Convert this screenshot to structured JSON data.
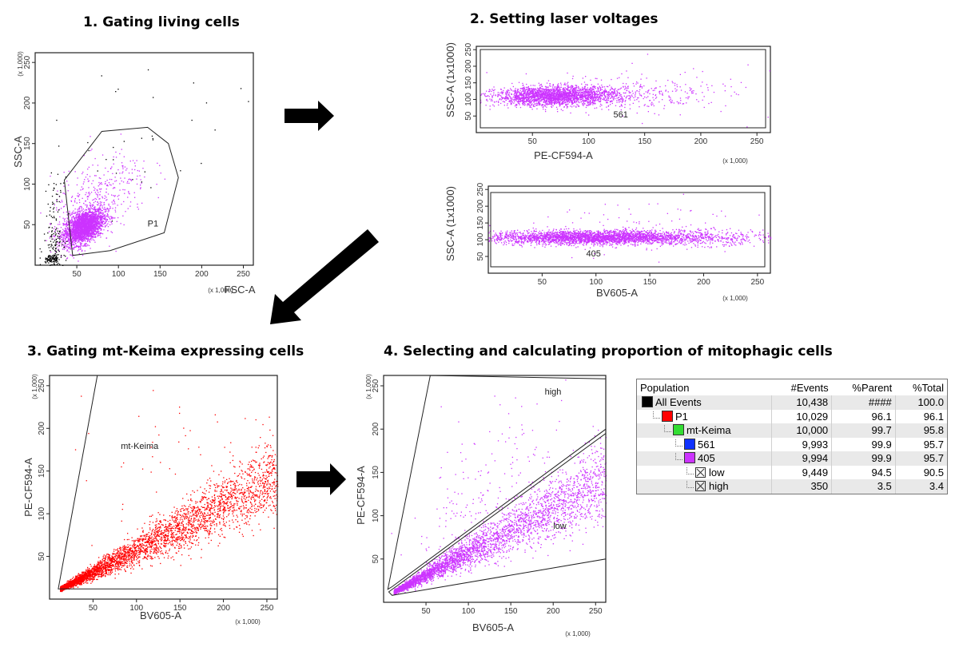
{
  "titles": {
    "s1": "1. Gating living cells",
    "s2": "2. Setting laser voltages",
    "s3": "3. Gating mt-Keima expressing cells",
    "s4": "4. Selecting and calculating proportion of mitophagic cells"
  },
  "colors": {
    "black": "#000000",
    "red": "#ff0000",
    "magenta": "#cc33ff",
    "green": "#33dd33",
    "blue": "#1133ff",
    "arrow": "#000000"
  },
  "chart_data": [
    {
      "id": "p1",
      "type": "scatter",
      "title": "1. Gating living cells",
      "xlabel": "FSC-A",
      "ylabel": "SSC-A",
      "scale_label": "(x 1,000)",
      "xlim": [
        0,
        262
      ],
      "ylim": [
        0,
        262
      ],
      "xticks": [
        50,
        100,
        150,
        200,
        250
      ],
      "yticks": [
        50,
        100,
        150,
        200,
        250
      ],
      "gates": [
        {
          "name": "P1",
          "label_at": [
            135,
            48
          ],
          "polygon": [
            [
              45,
              12
            ],
            [
              35,
              105
            ],
            [
              80,
              165
            ],
            [
              135,
              170
            ],
            [
              160,
              150
            ],
            [
              172,
              108
            ],
            [
              155,
              40
            ],
            [
              90,
              18
            ]
          ]
        }
      ],
      "clusters": [
        {
          "n": 2600,
          "color": "#cc33ff",
          "cx": 58,
          "cy": 48,
          "sx": 12,
          "sy": 11,
          "rho": 0.45
        },
        {
          "n": 350,
          "color": "#cc33ff",
          "cx": 78,
          "cy": 85,
          "sx": 30,
          "sy": 28,
          "rho": 0.5
        },
        {
          "n": 160,
          "color": "#000000",
          "cx": 22,
          "cy": 35,
          "sx": 6,
          "sy": 32,
          "rho": 0.1
        },
        {
          "n": 90,
          "color": "#000000",
          "cx": 20,
          "cy": 8,
          "sx": 6,
          "sy": 3,
          "rho": 0.1
        },
        {
          "n": 35,
          "color": "#000000",
          "cx": 120,
          "cy": 150,
          "sx": 60,
          "sy": 55,
          "rho": 0.2
        }
      ]
    },
    {
      "id": "p2a",
      "type": "scatter",
      "xlabel": "PE-CF594-A",
      "ylabel": "SSC-A (1x1000)",
      "scale_label": "(x 1,000)",
      "gate_label": "561",
      "xlim": [
        0,
        262
      ],
      "ylim": [
        0,
        260
      ],
      "xticks": [
        50,
        100,
        150,
        200,
        250
      ],
      "yticks": [
        50,
        100,
        150,
        200,
        250
      ],
      "clusters": [
        {
          "n": 2200,
          "color": "#cc33ff",
          "cx": 70,
          "cy": 112,
          "sx": 26,
          "sy": 14,
          "rho": 0.1
        },
        {
          "n": 450,
          "color": "#cc33ff",
          "cx": 115,
          "cy": 115,
          "sx": 45,
          "sy": 22,
          "rho": 0.05
        },
        {
          "n": 60,
          "color": "#cc33ff",
          "cx": 160,
          "cy": 130,
          "sx": 55,
          "sy": 45,
          "rho": 0.0
        }
      ]
    },
    {
      "id": "p2b",
      "type": "scatter",
      "xlabel": "BV605-A",
      "ylabel": "SSC-A (1x1000)",
      "scale_label": "(x 1,000)",
      "gate_label": "405",
      "xlim": [
        0,
        262
      ],
      "ylim": [
        0,
        260
      ],
      "xticks": [
        50,
        100,
        150,
        200,
        250
      ],
      "yticks": [
        50,
        100,
        150,
        200,
        250
      ],
      "clusters": [
        {
          "n": 2600,
          "color": "#cc33ff",
          "cx": 90,
          "cy": 108,
          "sx": 45,
          "sy": 10,
          "rho": 0.0
        },
        {
          "n": 700,
          "color": "#cc33ff",
          "cx": 175,
          "cy": 108,
          "sx": 45,
          "sy": 12,
          "rho": 0.0
        },
        {
          "n": 90,
          "color": "#cc33ff",
          "cx": 130,
          "cy": 140,
          "sx": 70,
          "sy": 45,
          "rho": 0.0
        }
      ]
    },
    {
      "id": "p3",
      "type": "scatter",
      "title": "3. Gating mt-Keima expressing cells",
      "xlabel": "BV605-A",
      "ylabel": "PE-CF594-A",
      "scale_label": "(x 1,000)",
      "xlim": [
        0,
        262
      ],
      "ylim": [
        0,
        262
      ],
      "xticks": [
        50,
        100,
        150,
        200,
        250
      ],
      "yticks": [
        50,
        100,
        150,
        200,
        250
      ],
      "gates": [
        {
          "name": "mt-Keima",
          "label_at": [
            82,
            176
          ],
          "polygon": [
            [
              10,
              12
            ],
            [
              55,
              262
            ],
            [
              262,
              262
            ],
            [
              262,
              12
            ]
          ]
        }
      ],
      "clusters": [
        {
          "diag": true,
          "n": 3800,
          "color": "#ff0000",
          "xmin": 12,
          "xmax": 262,
          "slope": 0.52,
          "spread": 0.17,
          "skew": 1.6
        },
        {
          "n": 45,
          "color": "#ff0000",
          "cx": 150,
          "cy": 180,
          "sx": 60,
          "sy": 45,
          "rho": 0.3
        }
      ]
    },
    {
      "id": "p4",
      "type": "scatter",
      "title": "4. Selecting and calculating proportion of mitophagic cells",
      "xlabel": "BV605-A",
      "ylabel": "PE-CF594-A",
      "scale_label": "(x 1,000)",
      "xlim": [
        0,
        262
      ],
      "ylim": [
        0,
        262
      ],
      "xticks": [
        50,
        100,
        150,
        200,
        250
      ],
      "yticks": [
        50,
        100,
        150,
        200,
        250
      ],
      "gates": [
        {
          "name": "high",
          "label_at": [
            190,
            240
          ],
          "polygon": [
            [
              5,
              15
            ],
            [
              55,
              262
            ],
            [
              262,
              258
            ],
            [
              262,
              200
            ],
            [
              10,
              18
            ]
          ]
        },
        {
          "name": "low",
          "label_at": [
            200,
            85
          ],
          "polygon": [
            [
              6,
              12
            ],
            [
              262,
              195
            ],
            [
              262,
              50
            ],
            [
              10,
              8
            ]
          ]
        }
      ],
      "clusters": [
        {
          "diag": true,
          "n": 3800,
          "color": "#cc33ff",
          "xmin": 12,
          "xmax": 262,
          "slope": 0.52,
          "spread": 0.17,
          "skew": 1.6
        },
        {
          "n": 140,
          "color": "#cc33ff",
          "cx": 110,
          "cy": 115,
          "sx": 40,
          "sy": 35,
          "rho": 0.6
        },
        {
          "n": 45,
          "color": "#cc33ff",
          "cx": 150,
          "cy": 185,
          "sx": 60,
          "sy": 45,
          "rho": 0.3
        }
      ]
    }
  ],
  "population_table": {
    "headers": [
      "Population",
      "#Events",
      "%Parent",
      "%Total"
    ],
    "rows": [
      {
        "name": "All Events",
        "events": "10,438",
        "parent": "####",
        "total": "100.0",
        "marker": "swatch",
        "color": "#000000",
        "indent": 0
      },
      {
        "name": "P1",
        "events": "10,029",
        "parent": "96.1",
        "total": "96.1",
        "marker": "swatch",
        "color": "#ff0000",
        "indent": 1
      },
      {
        "name": "mt-Keima",
        "events": "10,000",
        "parent": "99.7",
        "total": "95.8",
        "marker": "swatch",
        "color": "#33dd33",
        "indent": 2
      },
      {
        "name": "561",
        "events": "9,993",
        "parent": "99.9",
        "total": "95.7",
        "marker": "swatch",
        "color": "#1133ff",
        "indent": 3
      },
      {
        "name": "405",
        "events": "9,994",
        "parent": "99.9",
        "total": "95.7",
        "marker": "swatch",
        "color": "#cc33ff",
        "indent": 3
      },
      {
        "name": "low",
        "events": "9,449",
        "parent": "94.5",
        "total": "90.5",
        "marker": "x",
        "color": "#ffffff",
        "indent": 4
      },
      {
        "name": "high",
        "events": "350",
        "parent": "3.5",
        "total": "3.4",
        "marker": "x",
        "color": "#ffffff",
        "indent": 4
      }
    ]
  }
}
